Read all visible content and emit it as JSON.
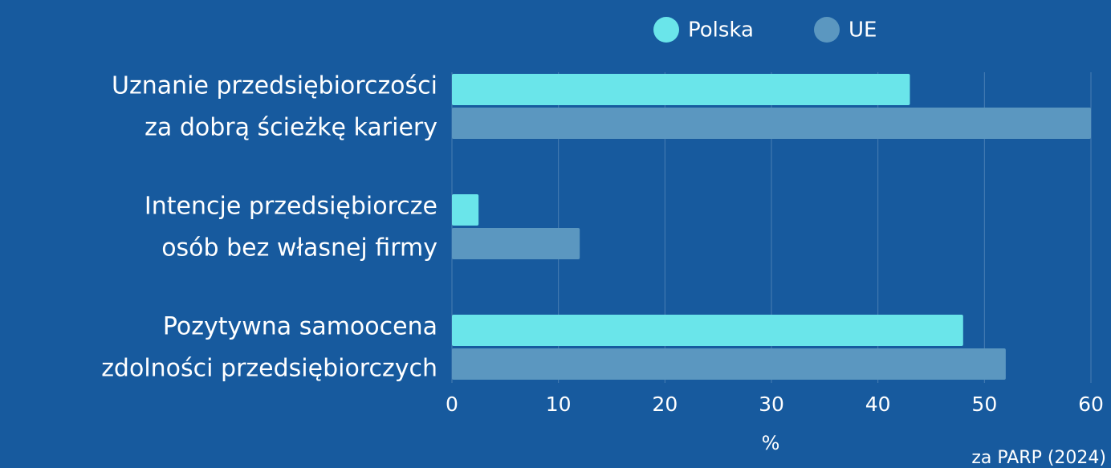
{
  "chart_data": {
    "type": "barh",
    "categories": [
      [
        "Uznanie przedsiębiorczości",
        "za dobrą ścieżkę kariery"
      ],
      [
        "Intencje przedsiębiorcze",
        "osób bez własnej firmy"
      ],
      [
        "Pozytywna samoocena",
        "zdolności przedsiębiorczych"
      ]
    ],
    "series": [
      {
        "name": "Polska",
        "color": "#6ae5ea",
        "values": [
          43,
          2.5,
          48
        ]
      },
      {
        "name": "UE",
        "color": "#5b97c0",
        "values": [
          60,
          12,
          52
        ]
      }
    ],
    "xlim": [
      0,
      60
    ],
    "xticks": [
      0,
      10,
      20,
      30,
      40,
      50,
      60
    ],
    "xlabel": "%",
    "source": "za PARP (2024)",
    "grid": true,
    "legend": "top"
  }
}
